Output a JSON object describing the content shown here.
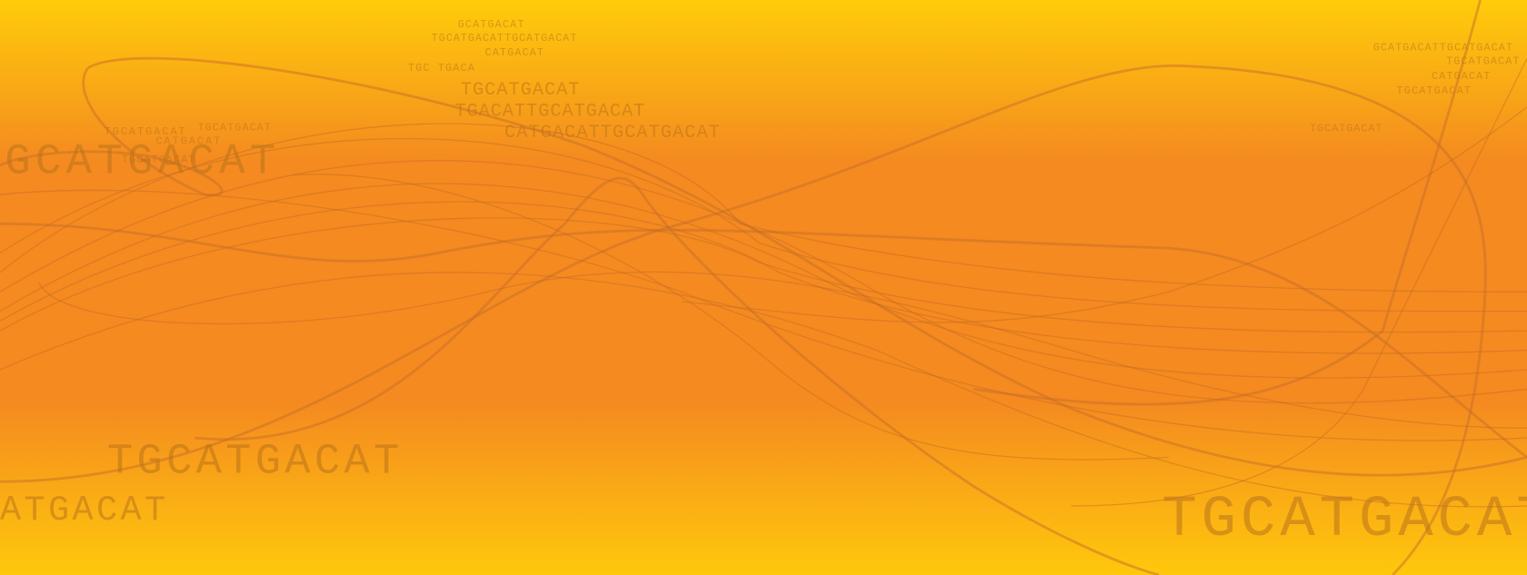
{
  "texts": [
    "GCATGACAT",
    "TGCATGACATTGCATGACAT",
    "CATGACAT",
    "TGC TGACA",
    "TGCATGACAT",
    "TGACATTGCATGACAT",
    "CATGACATTGCATGACAT",
    "GCATGACAT",
    "TGCATGACAT",
    "TGCATGACAT",
    "CATGACAT",
    "TGCATGACAT",
    "TGCATGACAT",
    "ATGACAT",
    "GCATGACATTGCATGACAT",
    "TGCATGACAT",
    "CATGACAT",
    "TGCATGACAT",
    "TGCATGACAT",
    "TGCATGACAT"
  ]
}
